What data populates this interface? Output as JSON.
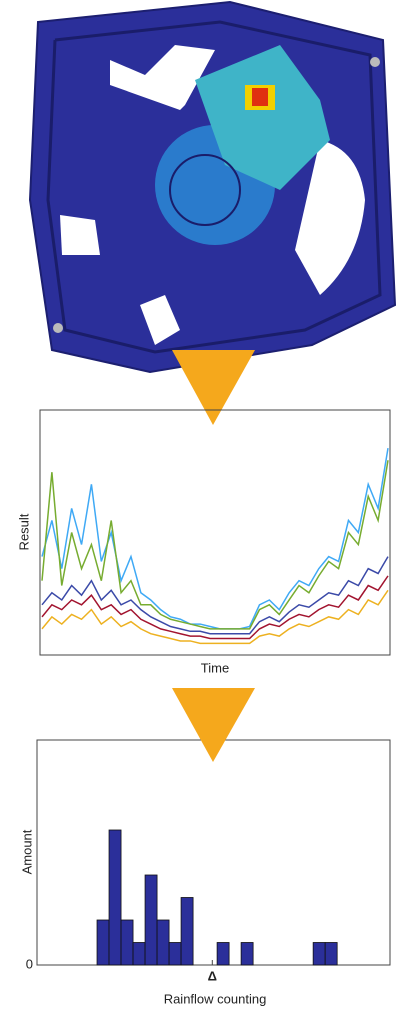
{
  "chart_data": [
    {
      "type": "line",
      "ylabel": "Result",
      "xlabel": "Time",
      "ylim": [
        0,
        100
      ],
      "series": [
        {
          "color": "#3fa9f5",
          "values": [
            40,
            55,
            35,
            60,
            45,
            70,
            38,
            50,
            30,
            40,
            25,
            22,
            18,
            15,
            14,
            12,
            12,
            11,
            10,
            10,
            10,
            11,
            20,
            22,
            18,
            25,
            30,
            28,
            35,
            40,
            38,
            55,
            50,
            70,
            60,
            85
          ]
        },
        {
          "color": "#77ac30",
          "values": [
            30,
            75,
            28,
            50,
            35,
            45,
            30,
            55,
            25,
            30,
            20,
            20,
            16,
            14,
            13,
            12,
            11,
            10,
            10,
            10,
            10,
            10,
            18,
            20,
            16,
            22,
            28,
            25,
            32,
            38,
            35,
            50,
            45,
            65,
            55,
            80
          ]
        },
        {
          "color": "#3b4aa8",
          "values": [
            20,
            25,
            22,
            28,
            24,
            30,
            22,
            26,
            20,
            22,
            18,
            15,
            13,
            11,
            10,
            9,
            9,
            8,
            8,
            8,
            8,
            8,
            13,
            15,
            13,
            17,
            20,
            19,
            22,
            25,
            24,
            30,
            28,
            35,
            33,
            40
          ]
        },
        {
          "color": "#a2142f",
          "values": [
            15,
            20,
            18,
            22,
            20,
            24,
            18,
            20,
            16,
            18,
            14,
            12,
            10,
            9,
            8,
            7,
            7,
            6,
            6,
            6,
            6,
            6,
            10,
            12,
            11,
            14,
            16,
            15,
            18,
            20,
            19,
            24,
            22,
            28,
            26,
            32
          ]
        },
        {
          "color": "#edb120",
          "values": [
            10,
            15,
            12,
            16,
            14,
            18,
            12,
            15,
            11,
            13,
            10,
            8,
            7,
            6,
            5,
            5,
            4,
            4,
            4,
            4,
            4,
            4,
            7,
            8,
            7,
            10,
            12,
            11,
            13,
            15,
            14,
            18,
            16,
            22,
            20,
            26
          ]
        }
      ]
    },
    {
      "type": "histogram",
      "ylabel": "Amount",
      "xlabel": "Rainflow counting",
      "color": "#2b2f9a",
      "bins": [
        5,
        6,
        7,
        8,
        9,
        10,
        11,
        12,
        13,
        14,
        15,
        16,
        17,
        18,
        19,
        20,
        21,
        22,
        23,
        24,
        25
      ],
      "values": [
        2,
        6,
        2,
        1,
        4,
        2,
        1,
        3,
        0,
        0,
        1,
        0,
        1,
        0,
        0,
        0,
        0,
        0,
        1,
        1
      ],
      "xlim": [
        0,
        29.4
      ],
      "ylim": [
        0,
        10
      ],
      "xticks": [
        {
          "value": 14.6,
          "label": "Δ"
        }
      ],
      "yticks": [
        0
      ]
    }
  ]
}
